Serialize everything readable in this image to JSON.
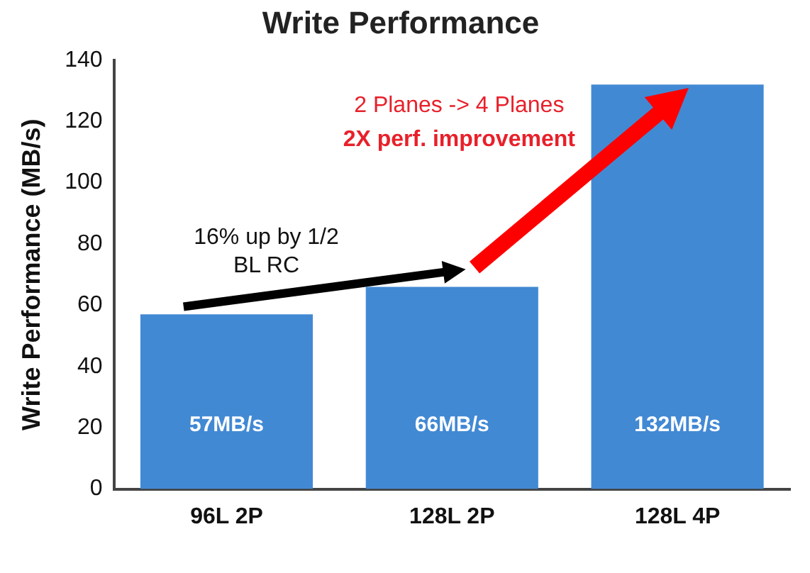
{
  "chart_data": {
    "type": "bar",
    "title": "Write Performance",
    "ylabel": "Write Performance (MB/s)",
    "categories": [
      "96L 2P",
      "128L 2P",
      "128L 4P"
    ],
    "values": [
      57,
      66,
      132
    ],
    "color": "#4289d4",
    "value_labels": [
      "57MB/s",
      "66MB/s",
      "132MB/s"
    ],
    "ylim": [
      0,
      140
    ],
    "yticks": [
      0,
      20,
      40,
      60,
      80,
      100,
      120,
      140
    ],
    "grid": false,
    "legend": false,
    "annotations": [
      "16% up by 1/2\nBL RC",
      "2 Planes -> 4 Planes",
      "2X perf. improvement"
    ]
  }
}
